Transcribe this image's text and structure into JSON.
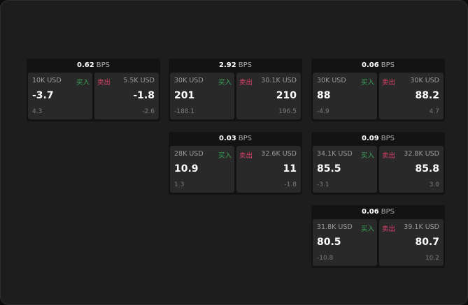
{
  "colors": {
    "buy": "#3aa659",
    "sell": "#e0426c"
  },
  "buy_label": "买入",
  "sell_label": "卖出",
  "unit": "BPS",
  "cards": [
    {
      "spread": "0.62",
      "buy": {
        "qty": "10K USD",
        "price": "-3.7",
        "change": "4.3"
      },
      "sell": {
        "qty": "5.5K USD",
        "price": "-1.8",
        "change": "-2.6"
      }
    },
    {
      "spread": "2.92",
      "buy": {
        "qty": "30K USD",
        "price": "201",
        "change": "-188.1"
      },
      "sell": {
        "qty": "30.1K USD",
        "price": "210",
        "change": "196.5"
      }
    },
    {
      "spread": "0.06",
      "buy": {
        "qty": "30K USD",
        "price": "88",
        "change": "-4.9"
      },
      "sell": {
        "qty": "30K USD",
        "price": "88.2",
        "change": "4.7"
      }
    },
    {
      "spread": "0.03",
      "buy": {
        "qty": "28K USD",
        "price": "10.9",
        "change": "1.3"
      },
      "sell": {
        "qty": "32.6K USD",
        "price": "11",
        "change": "-1.8"
      }
    },
    {
      "spread": "0.09",
      "buy": {
        "qty": "34.1K USD",
        "price": "85.5",
        "change": "-3.1"
      },
      "sell": {
        "qty": "32.8K USD",
        "price": "85.8",
        "change": "3.0"
      }
    },
    {
      "spread": "0.06",
      "buy": {
        "qty": "31.8K USD",
        "price": "80.5",
        "change": "-10.8"
      },
      "sell": {
        "qty": "39.1K USD",
        "price": "80.7",
        "change": "10.2"
      }
    }
  ]
}
